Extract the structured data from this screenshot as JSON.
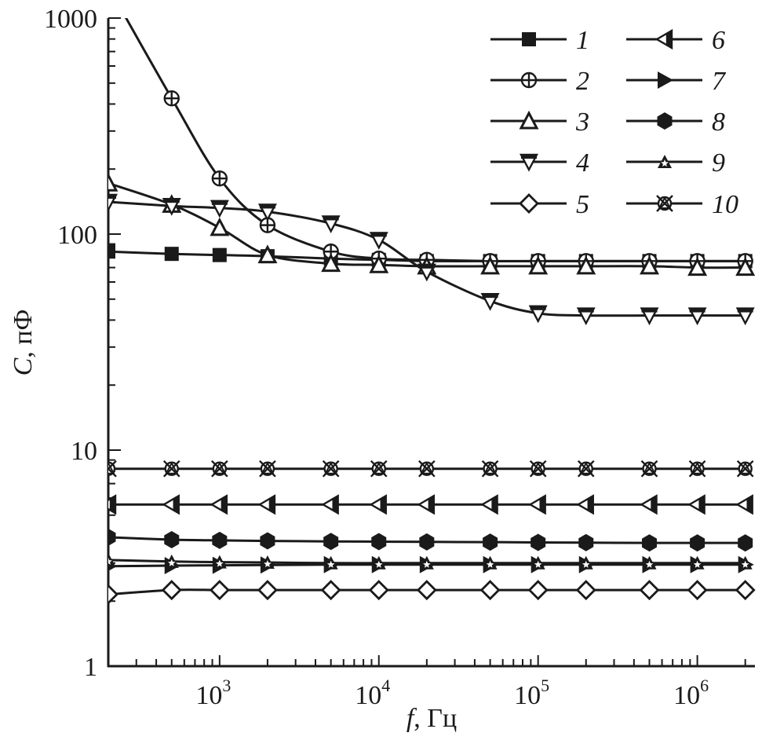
{
  "chart_data": {
    "type": "line",
    "title": "",
    "xlabel_italic": "f",
    "xlabel_rest": ", Гц",
    "ylabel_italic": "C",
    "ylabel_rest": ", пФ",
    "xscale": "log",
    "yscale": "log",
    "xlim": [
      200,
      2300000
    ],
    "ylim": [
      1,
      1000
    ],
    "x_ticks": [
      {
        "value": 1000,
        "base": "10",
        "exp": "3"
      },
      {
        "value": 10000,
        "base": "10",
        "exp": "4"
      },
      {
        "value": 100000,
        "base": "10",
        "exp": "5"
      },
      {
        "value": 1000000,
        "base": "10",
        "exp": "6"
      }
    ],
    "y_ticks": [
      {
        "value": 1,
        "label": "1"
      },
      {
        "value": 10,
        "label": "10"
      },
      {
        "value": 100,
        "label": "100"
      },
      {
        "value": 1000,
        "label": "1000"
      }
    ],
    "grid": false,
    "legend_position": "top-right",
    "x": [
      200,
      500,
      1000,
      2000,
      5000,
      10000,
      20000,
      50000,
      100000,
      200000,
      500000,
      1000000,
      2000000
    ],
    "series": [
      {
        "name": "1",
        "marker": "square-filled",
        "values": [
          83,
          81,
          80,
          79,
          77,
          76,
          75,
          75,
          75,
          75,
          75,
          75,
          75
        ]
      },
      {
        "name": "2",
        "marker": "circle-cross",
        "values": [
          1400,
          425,
          181,
          110,
          83,
          77,
          76,
          75,
          75,
          75,
          75,
          75,
          75
        ]
      },
      {
        "name": "3",
        "marker": "triangle-up-open",
        "values": [
          172,
          137,
          107,
          80,
          73,
          72,
          71,
          71,
          71,
          71,
          71,
          70,
          70
        ]
      },
      {
        "name": "4",
        "marker": "triangle-down-halffilled",
        "values": [
          141,
          135,
          132,
          127,
          112,
          94,
          67,
          49,
          43,
          42,
          42,
          42,
          42
        ]
      },
      {
        "name": "5",
        "marker": "diamond-open",
        "values": [
          2.15,
          2.25,
          2.25,
          2.25,
          2.25,
          2.25,
          2.25,
          2.25,
          2.25,
          2.25,
          2.25,
          2.25,
          2.25
        ]
      },
      {
        "name": "6",
        "marker": "triangle-left-halffilled",
        "values": [
          5.6,
          5.6,
          5.6,
          5.6,
          5.6,
          5.6,
          5.6,
          5.6,
          5.6,
          5.6,
          5.6,
          5.6,
          5.6
        ]
      },
      {
        "name": "7",
        "marker": "triangle-right-filled",
        "values": [
          2.9,
          2.92,
          2.93,
          2.94,
          2.95,
          2.95,
          2.95,
          2.95,
          2.95,
          2.95,
          2.95,
          2.95,
          2.95
        ]
      },
      {
        "name": "8",
        "marker": "hexagon-filled",
        "values": [
          3.95,
          3.85,
          3.82,
          3.8,
          3.78,
          3.77,
          3.76,
          3.75,
          3.74,
          3.73,
          3.72,
          3.72,
          3.72
        ]
      },
      {
        "name": "9",
        "marker": "star-in-triangle",
        "values": [
          3.1,
          3.05,
          3.03,
          3.02,
          3.0,
          3.0,
          3.0,
          3.0,
          3.0,
          3.0,
          3.0,
          3.0,
          3.0
        ]
      },
      {
        "name": "10",
        "marker": "circle-x-triangle",
        "values": [
          8.2,
          8.2,
          8.2,
          8.2,
          8.2,
          8.2,
          8.2,
          8.2,
          8.2,
          8.2,
          8.2,
          8.2,
          8.2
        ]
      }
    ],
    "legend": [
      {
        "label": "1",
        "series": 0
      },
      {
        "label": "2",
        "series": 1
      },
      {
        "label": "3",
        "series": 2
      },
      {
        "label": "4",
        "series": 3
      },
      {
        "label": "5",
        "series": 4
      },
      {
        "label": "6",
        "series": 5
      },
      {
        "label": "7",
        "series": 6
      },
      {
        "label": "8",
        "series": 7
      },
      {
        "label": "9",
        "series": 8
      },
      {
        "label": "10",
        "series": 9
      }
    ],
    "colors": {
      "ink": "#1a1a1a",
      "background": "#ffffff"
    }
  }
}
